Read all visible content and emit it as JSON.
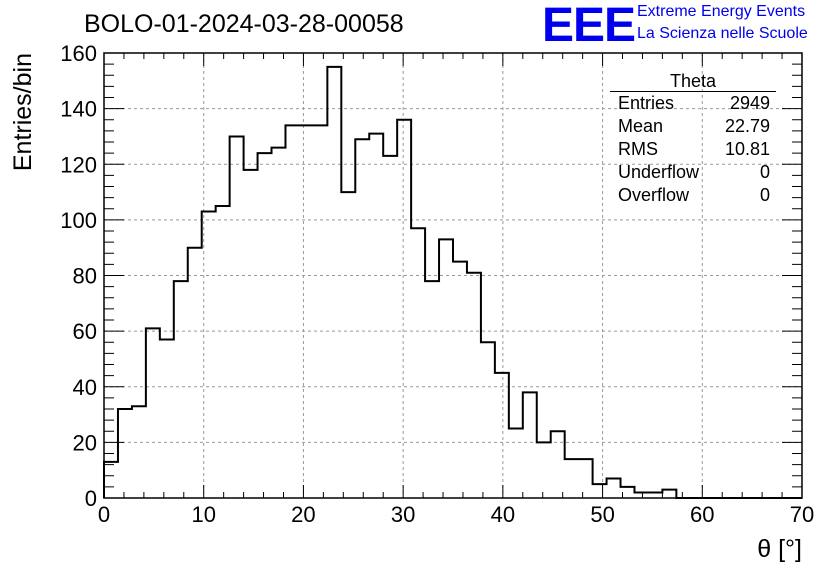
{
  "title": "BOLO-01-2024-03-28-00058",
  "logo": {
    "text": "EEE",
    "line1": "Extreme Energy Events",
    "line2": "La Scienza nelle Scuole",
    "color": "#0000ee"
  },
  "stats": {
    "name": "Theta",
    "rows": [
      {
        "label": "Entries",
        "value": "2949"
      },
      {
        "label": "Mean",
        "value": "22.79"
      },
      {
        "label": "RMS",
        "value": "10.81"
      },
      {
        "label": "Underflow",
        "value": "0"
      },
      {
        "label": "Overflow",
        "value": "0"
      }
    ]
  },
  "chart_data": {
    "type": "histogram",
    "xlabel": "θ [°]",
    "ylabel": "Entries/bin",
    "xlim": [
      0,
      70
    ],
    "ylim": [
      0,
      160
    ],
    "xticks": [
      0,
      10,
      20,
      30,
      40,
      50,
      60,
      70
    ],
    "yticks": [
      0,
      20,
      40,
      60,
      80,
      100,
      120,
      140,
      160
    ],
    "grid": true,
    "bin_width": 1.4,
    "bin_edges_start": 0,
    "values": [
      13,
      32,
      33,
      61,
      57,
      78,
      90,
      103,
      105,
      130,
      118,
      124,
      126,
      134,
      134,
      134,
      155,
      110,
      129,
      131,
      123,
      136,
      97,
      78,
      93,
      85,
      81,
      56,
      45,
      25,
      38,
      20,
      24,
      14,
      14,
      5,
      7,
      4,
      2,
      2,
      3,
      0,
      0,
      0,
      0,
      0,
      0,
      0,
      0,
      0
    ]
  }
}
